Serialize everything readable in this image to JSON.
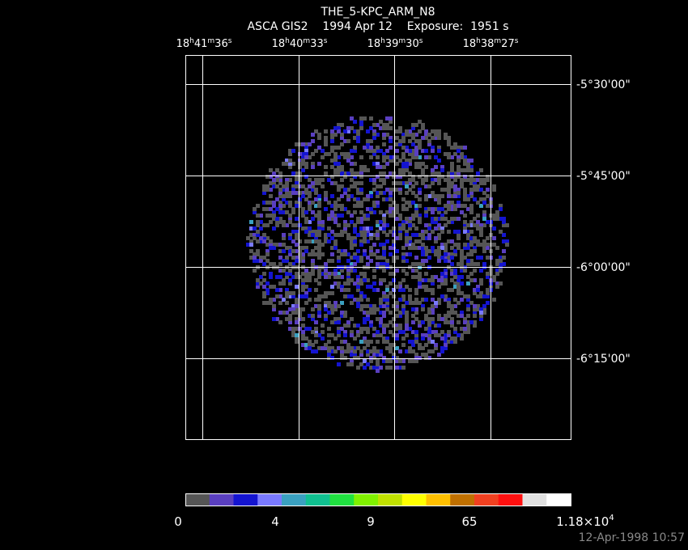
{
  "header": {
    "title": "THE_5-KPC_ARM_N8",
    "subtitle": "ASCA GIS2    1994 Apr 12    Exposure:  1951 s"
  },
  "ra_labels": [
    [
      "18",
      "h",
      "41",
      "m",
      "36",
      "s"
    ],
    [
      "18",
      "h",
      "40",
      "m",
      "33",
      "s"
    ],
    [
      "18",
      "h",
      "39",
      "m",
      "30",
      "s"
    ],
    [
      "18",
      "h",
      "38",
      "m",
      "27",
      "s"
    ]
  ],
  "dec_labels": [
    "-5°30'00\"",
    "-5°45'00\"",
    "-6°00'00\"",
    "-6°15'00\""
  ],
  "colorbar": {
    "colors": [
      "#555555",
      "#5a3fc0",
      "#1414d0",
      "#7a7aff",
      "#3aa0c0",
      "#10c090",
      "#20e040",
      "#80f000",
      "#c0e000",
      "#ffff00",
      "#ffc000",
      "#c07000",
      "#f04020",
      "#ff1010",
      "#e0e0e0",
      "#ffffff"
    ],
    "labels": [
      [
        "0"
      ],
      [
        "4"
      ],
      [
        "9"
      ],
      [
        "65"
      ],
      [
        "1.18×10",
        "4"
      ]
    ]
  },
  "footer": {
    "timestamp": "12-Apr-1998 10:57"
  }
}
